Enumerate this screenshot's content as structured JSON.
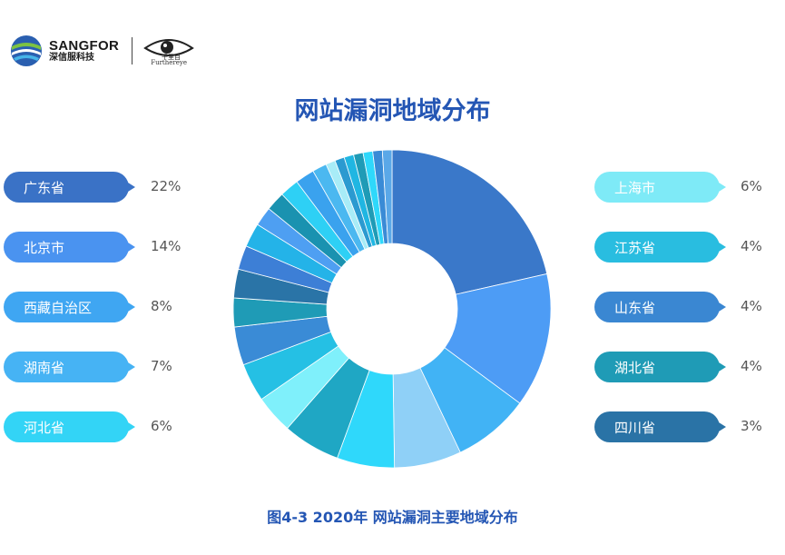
{
  "header": {
    "brand_name": "SANGFOR",
    "brand_sub": "深信服科技",
    "eye_logo_sub": "Furthereye",
    "eye_logo_chars": "千里目"
  },
  "chart_data": {
    "type": "pie",
    "title": "网站漏洞地域分布",
    "caption": "图4-3  2020年 网站漏洞主要地域分布",
    "legend_left": [
      {
        "label": "广东省",
        "pct": "22%",
        "color": "#3a72c6"
      },
      {
        "label": "北京市",
        "pct": "14%",
        "color": "#4a93f0"
      },
      {
        "label": "西藏自治区",
        "pct": "8%",
        "color": "#3fa6f2"
      },
      {
        "label": "湖南省",
        "pct": "7%",
        "color": "#46b3f4"
      },
      {
        "label": "河北省",
        "pct": "6%",
        "color": "#33d4f6"
      }
    ],
    "legend_right": [
      {
        "label": "上海市",
        "pct": "6%",
        "color": "#7eeaf7"
      },
      {
        "label": "江苏省",
        "pct": "4%",
        "color": "#29bde0"
      },
      {
        "label": "山东省",
        "pct": "4%",
        "color": "#3a87d2"
      },
      {
        "label": "湖北省",
        "pct": "4%",
        "color": "#1f9bb6"
      },
      {
        "label": "四川省",
        "pct": "3%",
        "color": "#2a73a6"
      }
    ],
    "slices": [
      {
        "value": 22,
        "color": "#3a78c9"
      },
      {
        "value": 14,
        "color": "#4d9cf5"
      },
      {
        "value": 8,
        "color": "#41b3f5"
      },
      {
        "value": 7,
        "color": "#8fd0f7"
      },
      {
        "value": 6,
        "color": "#2fd8fb"
      },
      {
        "value": 6,
        "color": "#1fa7c4"
      },
      {
        "value": 4,
        "color": "#7ff0fb"
      },
      {
        "value": 4,
        "color": "#25c0e4"
      },
      {
        "value": 4,
        "color": "#3a8bd6"
      },
      {
        "value": 3,
        "color": "#1f9bb6"
      },
      {
        "value": 3,
        "color": "#2a74a7"
      },
      {
        "value": 2.5,
        "color": "#3d7fd6"
      },
      {
        "value": 2.5,
        "color": "#24b3e8"
      },
      {
        "value": 2,
        "color": "#4e9ff2"
      },
      {
        "value": 2,
        "color": "#1a92b0"
      },
      {
        "value": 2,
        "color": "#2ed0f5"
      },
      {
        "value": 2,
        "color": "#3aa2ee"
      },
      {
        "value": 1.5,
        "color": "#4bb8f0"
      },
      {
        "value": 1,
        "color": "#a8ecf7"
      },
      {
        "value": 1,
        "color": "#2b9ad0"
      },
      {
        "value": 1,
        "color": "#20b6e2"
      },
      {
        "value": 1,
        "color": "#1f9bb6"
      },
      {
        "value": 1,
        "color": "#2fd8fb"
      },
      {
        "value": 1,
        "color": "#3a8bd6"
      },
      {
        "value": 1,
        "color": "#5aa8e8"
      }
    ]
  }
}
